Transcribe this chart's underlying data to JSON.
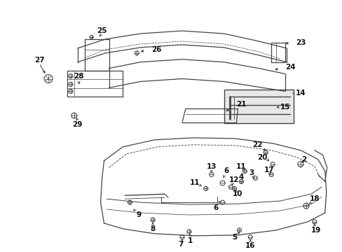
{
  "bg_color": "#ffffff",
  "figsize": [
    4.89,
    3.6
  ],
  "dpi": 100,
  "gray": "#444444",
  "lgray": "#888888",
  "font_size": 7.5
}
